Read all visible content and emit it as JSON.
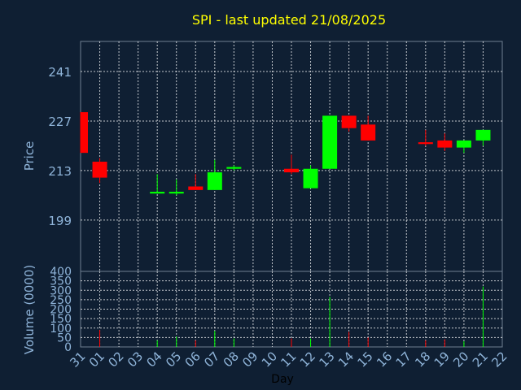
{
  "chart_data": {
    "type": "candlestick",
    "title": "SPI - last updated 21/08/2025",
    "xlabel": "Day",
    "ylabel_price": "Price",
    "ylabel_volume": "Volume (0000)",
    "x_ticks": [
      "31",
      "01",
      "02",
      "03",
      "04",
      "05",
      "06",
      "07",
      "08",
      "09",
      "10",
      "11",
      "12",
      "13",
      "14",
      "15",
      "16",
      "17",
      "18",
      "19",
      "20",
      "21",
      "22"
    ],
    "price_ticks": [
      199,
      213,
      227,
      241
    ],
    "price_range": [
      184.5,
      249.5
    ],
    "volume_ticks": [
      0,
      50,
      100,
      150,
      200,
      250,
      300,
      350,
      400
    ],
    "volume_range": [
      0,
      400
    ],
    "grid": true,
    "colors": {
      "background": "#0f1f33",
      "title": "#ffff00",
      "up": "#00ff00",
      "down": "#ff0000",
      "axis_text": "#8fb4d9",
      "label_text": "#000000"
    },
    "candles": [
      {
        "day": "31",
        "open": 229.5,
        "high": 229.5,
        "low": 218.0,
        "close": 218.0,
        "volume": 0
      },
      {
        "day": "01",
        "open": 215.5,
        "high": 216.5,
        "low": 209.5,
        "close": 211.0,
        "volume": 90
      },
      {
        "day": "04",
        "open": 206.5,
        "high": 212.0,
        "low": 206.5,
        "close": 207.0,
        "volume": 35
      },
      {
        "day": "05",
        "open": 206.5,
        "high": 210.5,
        "low": 206.0,
        "close": 207.0,
        "volume": 55
      },
      {
        "day": "06",
        "open": 208.5,
        "high": 212.0,
        "low": 207.5,
        "close": 207.5,
        "volume": 35
      },
      {
        "day": "07",
        "open": 207.5,
        "high": 216.0,
        "low": 207.5,
        "close": 212.5,
        "volume": 85
      },
      {
        "day": "08",
        "open": 213.5,
        "high": 214.5,
        "low": 213.0,
        "close": 214.0,
        "volume": 45
      },
      {
        "day": "11",
        "open": 213.5,
        "high": 217.5,
        "low": 212.0,
        "close": 212.5,
        "volume": 45
      },
      {
        "day": "12",
        "open": 208.0,
        "high": 214.5,
        "low": 208.0,
        "close": 213.5,
        "volume": 45
      },
      {
        "day": "13",
        "open": 213.5,
        "high": 228.5,
        "low": 213.5,
        "close": 228.5,
        "volume": 265
      },
      {
        "day": "14",
        "open": 228.5,
        "high": 228.5,
        "low": 224.0,
        "close": 225.0,
        "volume": 80
      },
      {
        "day": "15",
        "open": 226.0,
        "high": 228.5,
        "low": 221.5,
        "close": 221.5,
        "volume": 50
      },
      {
        "day": "18",
        "open": 221.0,
        "high": 224.5,
        "low": 220.0,
        "close": 220.5,
        "volume": 35
      },
      {
        "day": "19",
        "open": 221.5,
        "high": 223.5,
        "low": 218.5,
        "close": 219.5,
        "volume": 40
      },
      {
        "day": "20",
        "open": 219.5,
        "high": 221.5,
        "low": 218.0,
        "close": 221.5,
        "volume": 30
      },
      {
        "day": "21",
        "open": 221.5,
        "high": 224.5,
        "low": 220.0,
        "close": 224.5,
        "volume": 320
      }
    ]
  }
}
